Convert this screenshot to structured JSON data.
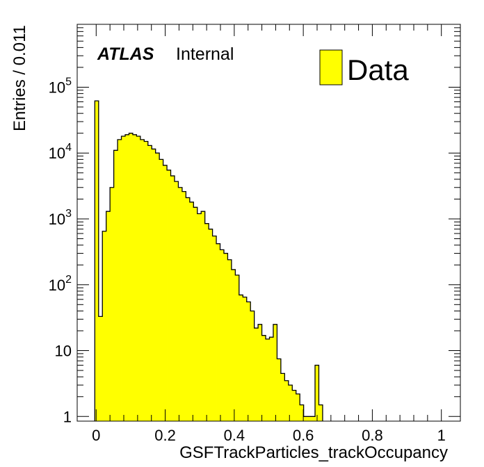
{
  "chart_data": {
    "type": "bar",
    "xlabel": "GSFTrackParticles_trackOccupancy",
    "ylabel": "Entries / 0.011",
    "x_tick_labels": [
      "0",
      "0.2",
      "0.4",
      "0.6",
      "0.8",
      "1"
    ],
    "x_ticks": [
      0,
      0.2,
      0.4,
      0.6,
      0.8,
      1.0
    ],
    "y_tick_labels": [
      {
        "value": 1,
        "base": "1",
        "exp": ""
      },
      {
        "value": 10,
        "base": "10",
        "exp": ""
      },
      {
        "value": 100,
        "base": "10",
        "exp": "2"
      },
      {
        "value": 1000,
        "base": "10",
        "exp": "3"
      },
      {
        "value": 10000,
        "base": "10",
        "exp": "4"
      },
      {
        "value": 100000,
        "base": "10",
        "exp": "5"
      }
    ],
    "xlim": [
      -0.055,
      1.055
    ],
    "ylim": [
      0.85,
      900000
    ],
    "log_y": true,
    "bin_width": 0.011,
    "bin_start": -0.004,
    "atlas_label": "ATLAS",
    "atlas_status": "Internal",
    "legend": [
      {
        "name": "Data",
        "color": "#ffff00"
      }
    ],
    "series": [
      {
        "name": "Data",
        "color": "#ffff00",
        "edge_color": "#000000",
        "values": [
          62000,
          33,
          650,
          1300,
          3000,
          11000,
          16000,
          18000,
          19000,
          20000,
          19000,
          18000,
          16000,
          15000,
          13000,
          11500,
          10000,
          8000,
          6500,
          5500,
          4500,
          3700,
          3000,
          2600,
          2100,
          1800,
          1500,
          1200,
          1300,
          850,
          700,
          550,
          420,
          340,
          300,
          240,
          170,
          140,
          70,
          65,
          55,
          40,
          22,
          25,
          17,
          15,
          16,
          25,
          7.5,
          4.5,
          3.5,
          3,
          2.5,
          2.2,
          1.5,
          1,
          1,
          1,
          6,
          1.5
        ]
      }
    ],
    "grid": false
  }
}
